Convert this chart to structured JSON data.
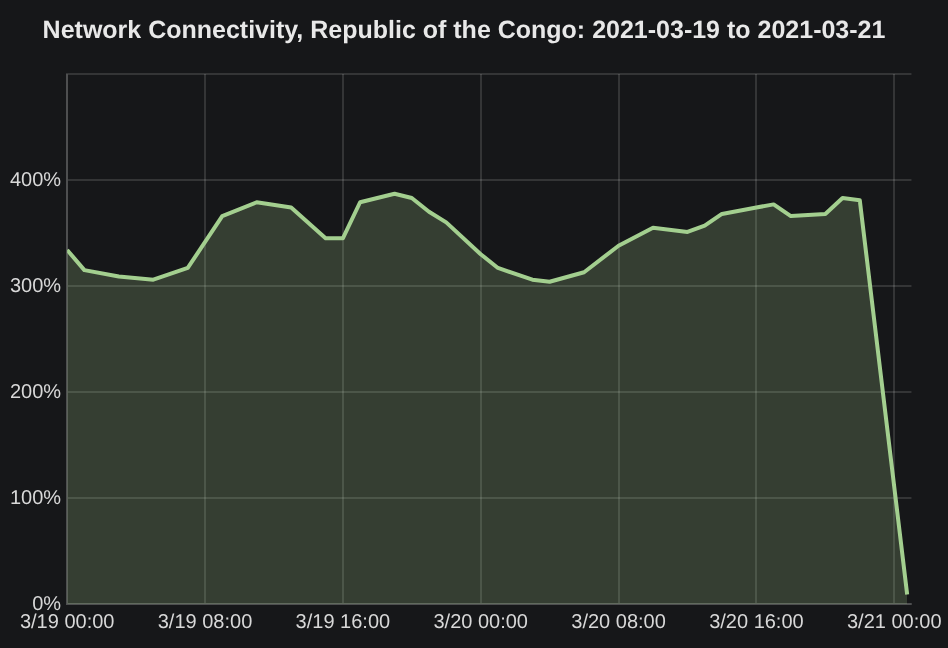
{
  "chart_data": {
    "type": "area",
    "title": "Network Connectivity, Republic of the Congo: 2021-03-19 to 2021-03-21",
    "x": [
      "2021-03-19T00:00",
      "2021-03-19T01:00",
      "2021-03-19T03:00",
      "2021-03-19T05:00",
      "2021-03-19T07:00",
      "2021-03-19T09:00",
      "2021-03-19T11:00",
      "2021-03-19T13:00",
      "2021-03-19T15:00",
      "2021-03-19T16:00",
      "2021-03-19T17:00",
      "2021-03-19T19:00",
      "2021-03-19T20:00",
      "2021-03-19T21:00",
      "2021-03-19T22:00",
      "2021-03-20T00:00",
      "2021-03-20T01:00",
      "2021-03-20T03:00",
      "2021-03-20T04:00",
      "2021-03-20T06:00",
      "2021-03-20T08:00",
      "2021-03-20T10:00",
      "2021-03-20T12:00",
      "2021-03-20T13:00",
      "2021-03-20T14:00",
      "2021-03-20T16:00",
      "2021-03-20T17:00",
      "2021-03-20T18:00",
      "2021-03-20T20:00",
      "2021-03-20T21:00",
      "2021-03-20T22:00",
      "2021-03-21T00:45"
    ],
    "series": [
      {
        "color": "#a3cf8f",
        "values": [
          334,
          315,
          309,
          306,
          317,
          366,
          379,
          374,
          345,
          345,
          379,
          387,
          383,
          370,
          360,
          330,
          317,
          306,
          304,
          313,
          338,
          355,
          351,
          357,
          368,
          374,
          377,
          366,
          368,
          383,
          381,
          9
        ]
      }
    ],
    "xlim": [
      "2021-03-19T00:00",
      "2021-03-21T01:00"
    ],
    "xticks": [
      {
        "value": "2021-03-19T00:00",
        "label": "3/19 00:00"
      },
      {
        "value": "2021-03-19T08:00",
        "label": "3/19 08:00"
      },
      {
        "value": "2021-03-19T16:00",
        "label": "3/19 16:00"
      },
      {
        "value": "2021-03-20T00:00",
        "label": "3/20 00:00"
      },
      {
        "value": "2021-03-20T08:00",
        "label": "3/20 08:00"
      },
      {
        "value": "2021-03-20T16:00",
        "label": "3/20 16:00"
      },
      {
        "value": "2021-03-21T00:00",
        "label": "3/21 00:00"
      }
    ],
    "ylim": [
      0,
      500
    ],
    "yticks": [
      {
        "value": 0,
        "label": "0%"
      },
      {
        "value": 100,
        "label": "100%"
      },
      {
        "value": 200,
        "label": "200%"
      },
      {
        "value": 300,
        "label": "300%"
      },
      {
        "value": 400,
        "label": "400%"
      },
      {
        "value": 500,
        "label": null
      }
    ],
    "grid": true
  }
}
